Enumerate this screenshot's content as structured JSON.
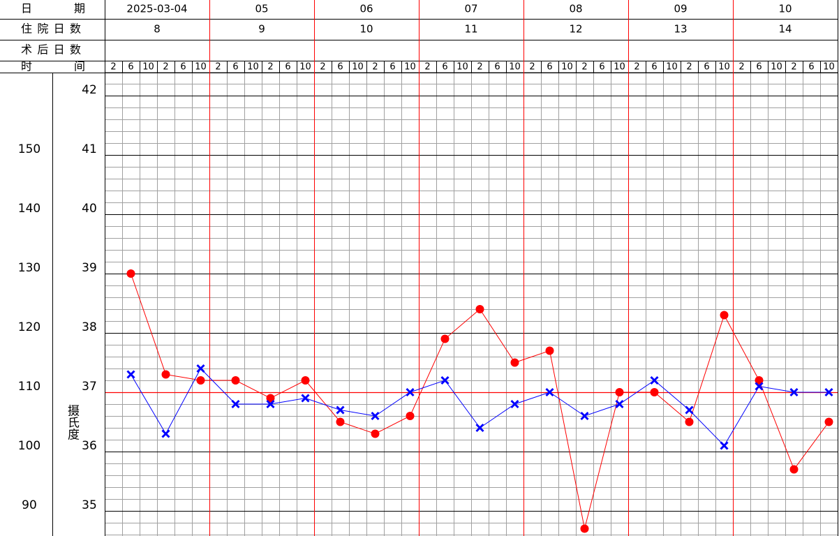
{
  "header": {
    "row_labels": [
      "日期",
      "住院日数",
      "术后日数",
      "时间"
    ],
    "dates": [
      "2025-03-04",
      "05",
      "06",
      "07",
      "08",
      "09",
      "10"
    ],
    "hospital_days": [
      8,
      9,
      10,
      11,
      12,
      13,
      14
    ],
    "time_labels": [
      2,
      6,
      10,
      2,
      6,
      10,
      2,
      6,
      10,
      2,
      6,
      10,
      2,
      6,
      10,
      2,
      6,
      10,
      2,
      6,
      10,
      2,
      6,
      10,
      2,
      6,
      10,
      2,
      6,
      10,
      2,
      6,
      10,
      2,
      6,
      10,
      2,
      6,
      10,
      2,
      6,
      10
    ],
    "time_label_colors": [
      "#ff0000",
      "#ff0000",
      "#000000",
      "#000000",
      "#000000",
      "#ff0000"
    ]
  },
  "chart_data": {
    "type": "line",
    "ylabel": "摄氏度",
    "xlim": [
      0,
      168
    ],
    "ylim": [
      34.6,
      42.4
    ],
    "yticks": [
      35,
      36,
      37,
      38,
      39,
      40,
      41,
      42
    ],
    "y2lim": [
      86,
      164
    ],
    "y2ticks": [
      90,
      100,
      110,
      120,
      130,
      140,
      150
    ],
    "grid": true,
    "reference_line": {
      "value": 37,
      "color": "#ff0000"
    },
    "series": [
      {
        "color": "#ff0000",
        "marker": "circle",
        "axis": "y2",
        "x": [
          6,
          14,
          22,
          30,
          38,
          46,
          54,
          62,
          70,
          78,
          86,
          94,
          102,
          110,
          118,
          126,
          134,
          142,
          150,
          158,
          166
        ],
        "values": [
          130,
          113,
          112,
          112,
          109,
          112,
          105,
          103,
          106,
          119,
          124,
          115,
          117,
          87,
          110,
          110,
          105,
          123,
          112,
          97,
          105
        ]
      },
      {
        "color": "#0000ff",
        "marker": "x",
        "axis": "y",
        "x": [
          6,
          14,
          22,
          30,
          38,
          46,
          54,
          62,
          70,
          78,
          86,
          94,
          102,
          110,
          118,
          126,
          134,
          142,
          150,
          158,
          166
        ],
        "values": [
          37.3,
          36.3,
          37.4,
          36.8,
          36.8,
          36.9,
          36.7,
          36.6,
          37.0,
          37.2,
          36.4,
          36.8,
          37.0,
          36.6,
          36.8,
          37.2,
          36.7,
          36.1,
          37.1,
          37.0,
          37.0
        ]
      }
    ]
  }
}
